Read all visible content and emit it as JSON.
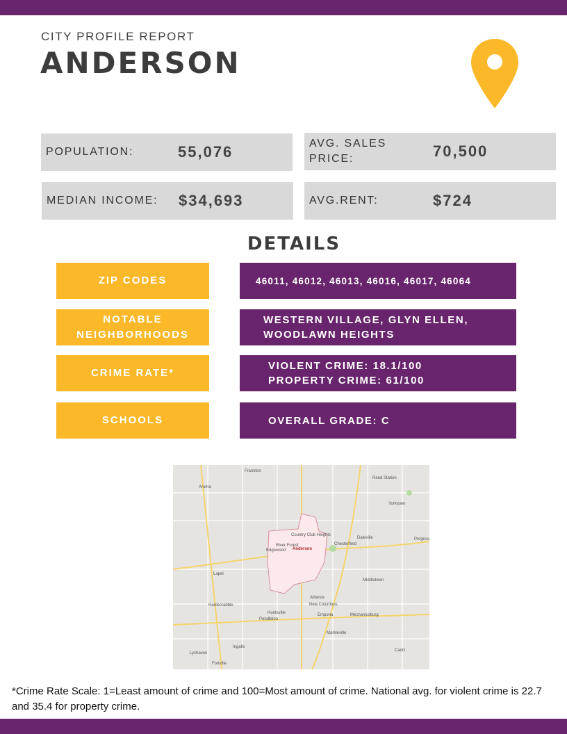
{
  "header": {
    "kicker": "CITY PROFILE REPORT",
    "city": "ANDERSON"
  },
  "stats": [
    {
      "label": "POPULATION:",
      "value": "55,076"
    },
    {
      "label": "AVG. SALES PRICE:",
      "value": "70,500"
    },
    {
      "label": "MEDIAN INCOME:",
      "value": "$34,693"
    },
    {
      "label": "AVG.RENT:",
      "value": "$724"
    }
  ],
  "details": {
    "title": "DETAILS",
    "rows": [
      {
        "label": "ZIP CODES",
        "value": [
          "46011, 46012, 46013, 46016, 46017, 46064"
        ]
      },
      {
        "label": "NOTABLE NEIGHBORHOODS",
        "value": [
          "WESTERN VILLAGE, GLYN ELLEN,",
          "WOODLAWN HEIGHTS"
        ]
      },
      {
        "label": "CRIME RATE*",
        "value": [
          "VIOLENT CRIME: 18.1/100",
          "PROPERTY CRIME: 61/100"
        ]
      },
      {
        "label": "SCHOOLS",
        "value": [
          "OVERALL GRADE: C"
        ]
      }
    ]
  },
  "map": {
    "labels": [
      "Frankton",
      "Reed Station",
      "Aroma",
      "Yorktown",
      "Country Club Heights",
      "Chesterfield",
      "Daleville",
      "River Forest",
      "Edgewood",
      "Anderson",
      "Progress",
      "Lapel",
      "Middletown",
      "Alliance",
      "Hardscrabble",
      "New Columbus",
      "Huntsville",
      "Pendleton",
      "Emporia",
      "Mechanicsburg",
      "Markleville",
      "Ingalls",
      "Lyshaven",
      "Cadiz",
      "Fortville"
    ]
  },
  "footnote": "*Crime Rate Scale: 1=Least amount of crime and 100=Most amount of crime. National avg. for violent crime is 22.7 and 35.4 for property crime."
}
